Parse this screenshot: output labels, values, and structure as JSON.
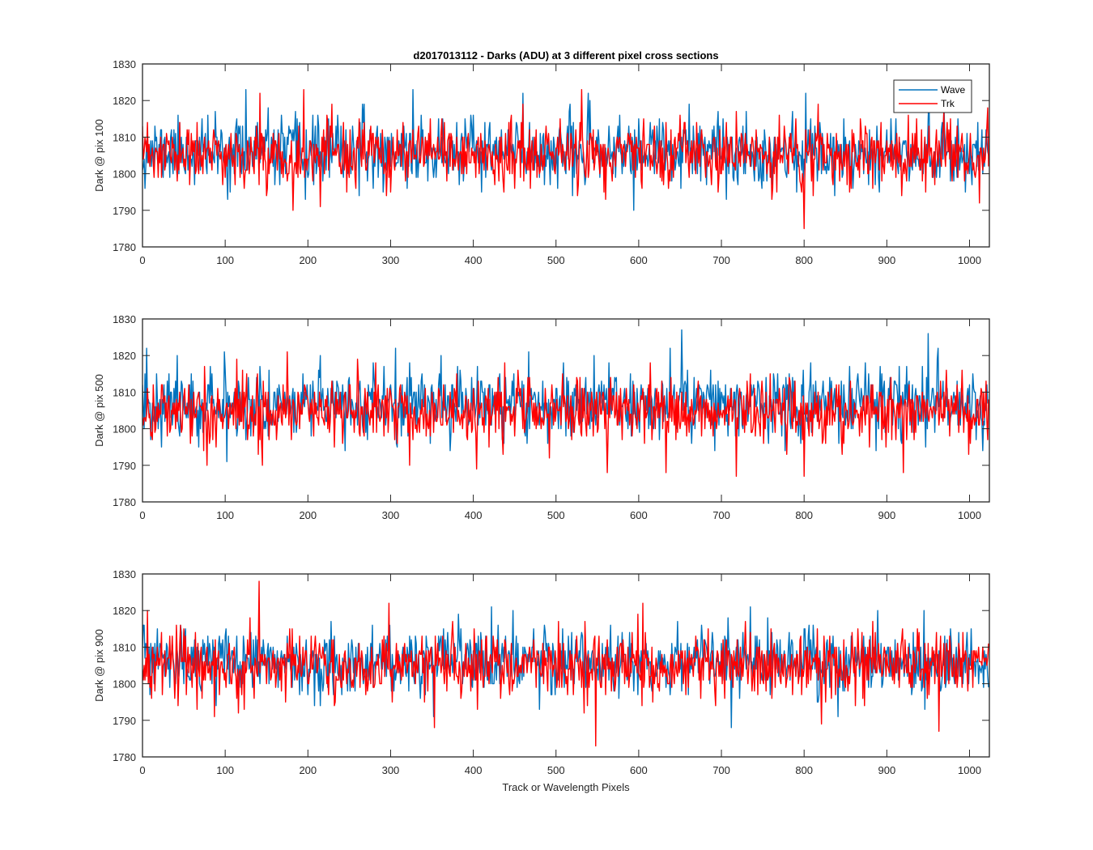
{
  "figure": {
    "title": "d2017013112 - Darks (ADU) at 3 different pixel cross sections",
    "xlabel": "Track or Wavelength Pixels"
  },
  "colors": {
    "wave": "#0072BD",
    "trk": "#FF0000",
    "axes": "#262626",
    "background": "#ffffff"
  },
  "chart_data": [
    {
      "type": "line",
      "title": "d2017013112 - Darks (ADU) at 3 different pixel cross sections",
      "xlabel": "",
      "ylabel": "Dark @ pix 100",
      "xlim": [
        0,
        1024
      ],
      "ylim": [
        1780,
        1830
      ],
      "xticks": [
        0,
        100,
        200,
        300,
        400,
        500,
        600,
        700,
        800,
        900,
        1000
      ],
      "yticks": [
        1780,
        1790,
        1800,
        1810,
        1820,
        1830
      ],
      "legend": {
        "position": "top-right",
        "entries": [
          "Wave",
          "Trk"
        ]
      },
      "sample_count": 1024,
      "series": [
        {
          "name": "Wave",
          "color": "#0072BD",
          "mean": 1806,
          "std": 4.5,
          "seed": 11,
          "peaks": [
            [
              125,
              1823
            ],
            [
              327,
              1823
            ],
            [
              460,
              1822
            ],
            [
              802,
              1822
            ],
            [
              951,
              1822
            ]
          ],
          "dips": [
            [
              197,
              1793
            ],
            [
              520,
              1794
            ],
            [
              706,
              1793
            ],
            [
              995,
              1795
            ]
          ]
        },
        {
          "name": "Trk",
          "color": "#FF0000",
          "mean": 1805,
          "std": 4.2,
          "seed": 23,
          "peaks": [
            [
              195,
              1823
            ],
            [
              531,
              1823
            ],
            [
              142,
              1822
            ],
            [
              1022,
              1818
            ]
          ],
          "dips": [
            [
              182,
              1790
            ],
            [
              215,
              1791
            ],
            [
              800,
              1785
            ],
            [
              1012,
              1792
            ]
          ]
        }
      ]
    },
    {
      "type": "line",
      "xlabel": "",
      "ylabel": "Dark @ pix 500",
      "xlim": [
        0,
        1024
      ],
      "ylim": [
        1780,
        1830
      ],
      "xticks": [
        0,
        100,
        200,
        300,
        400,
        500,
        600,
        700,
        800,
        900,
        1000
      ],
      "yticks": [
        1780,
        1790,
        1800,
        1810,
        1820,
        1830
      ],
      "sample_count": 1024,
      "series": [
        {
          "name": "Wave",
          "color": "#0072BD",
          "mean": 1807,
          "std": 4.6,
          "seed": 37,
          "peaks": [
            [
              5,
              1822
            ],
            [
              652,
              1827
            ],
            [
              638,
              1822
            ],
            [
              950,
              1826
            ],
            [
              962,
              1822
            ],
            [
              306,
              1822
            ]
          ],
          "dips": [
            [
              102,
              1791
            ],
            [
              372,
              1794
            ],
            [
              1016,
              1794
            ]
          ]
        },
        {
          "name": "Trk",
          "color": "#FF0000",
          "mean": 1805,
          "std": 4.4,
          "seed": 41,
          "peaks": [
            [
              175,
              1821
            ],
            [
              260,
              1819
            ],
            [
              614,
              1818
            ]
          ],
          "dips": [
            [
              78,
              1790
            ],
            [
              323,
              1790
            ],
            [
              404,
              1789
            ],
            [
              562,
              1788
            ],
            [
              633,
              1788
            ],
            [
              718,
              1787
            ],
            [
              800,
              1787
            ],
            [
              920,
              1788
            ]
          ]
        }
      ]
    },
    {
      "type": "line",
      "xlabel": "Track or Wavelength Pixels",
      "ylabel": "Dark @ pix 900",
      "xlim": [
        0,
        1024
      ],
      "ylim": [
        1780,
        1830
      ],
      "xticks": [
        0,
        100,
        200,
        300,
        400,
        500,
        600,
        700,
        800,
        900,
        1000
      ],
      "yticks": [
        1780,
        1790,
        1800,
        1810,
        1820,
        1830
      ],
      "sample_count": 1024,
      "series": [
        {
          "name": "Wave",
          "color": "#0072BD",
          "mean": 1806,
          "std": 4.3,
          "seed": 53,
          "peaks": [
            [
              422,
              1821
            ],
            [
              735,
              1821
            ],
            [
              945,
              1820
            ],
            [
              2,
              1816
            ]
          ],
          "dips": [
            [
              712,
              1788
            ],
            [
              480,
              1793
            ],
            [
              215,
              1794
            ]
          ]
        },
        {
          "name": "Trk",
          "color": "#FF0000",
          "mean": 1805,
          "std": 4.3,
          "seed": 67,
          "peaks": [
            [
              141,
              1828
            ],
            [
              6,
              1820
            ],
            [
              605,
              1822
            ],
            [
              130,
              1818
            ],
            [
              375,
              1817
            ]
          ],
          "dips": [
            [
              548,
              1783
            ],
            [
              353,
              1788
            ],
            [
              963,
              1787
            ],
            [
              87,
              1791
            ],
            [
              116,
              1792
            ],
            [
              534,
              1792
            ]
          ]
        }
      ]
    }
  ]
}
